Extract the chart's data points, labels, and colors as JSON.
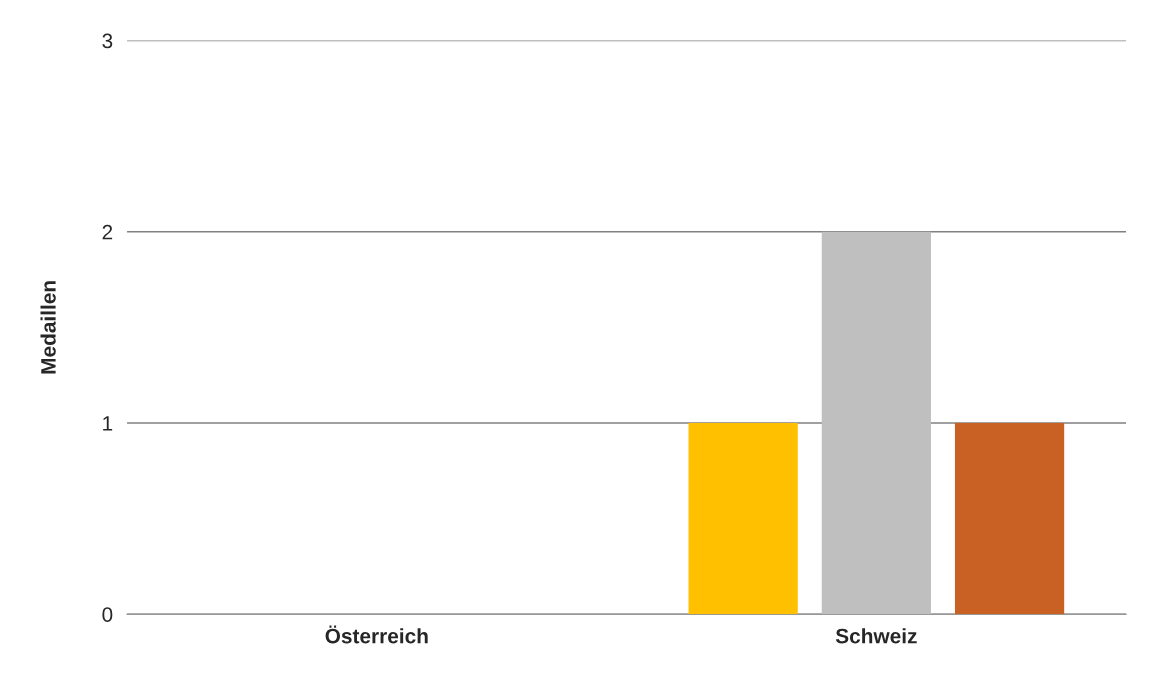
{
  "chart_data": {
    "type": "bar",
    "ylabel": "Medaillen",
    "categories": [
      "Österreich",
      "Schweiz"
    ],
    "series": [
      {
        "color": "#ffc000",
        "values": [
          0,
          1
        ]
      },
      {
        "color": "#bfbfbf",
        "values": [
          0,
          2
        ]
      },
      {
        "color": "#c96125",
        "values": [
          0,
          1
        ]
      }
    ],
    "ylim": [
      0,
      3
    ],
    "yticks": [
      0,
      1,
      2,
      3
    ],
    "grid": "y"
  }
}
